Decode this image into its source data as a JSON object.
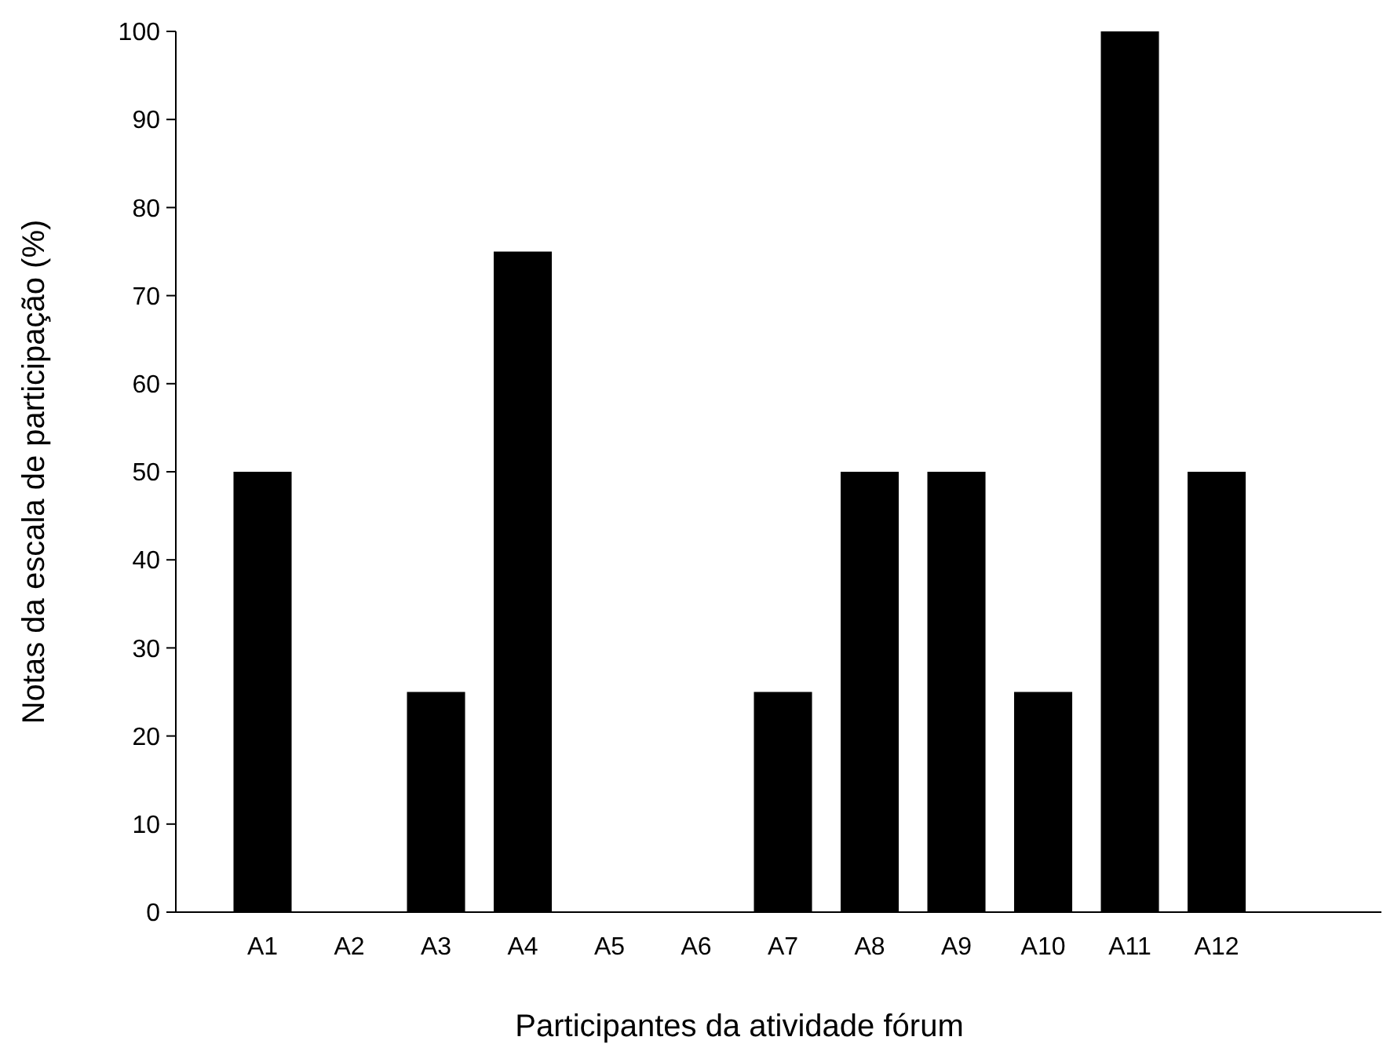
{
  "chart_data": {
    "type": "bar",
    "xlabel": "Participantes da atividade fórum",
    "ylabel": "Notas da escala de participação (%)",
    "categories": [
      "A1",
      "A2",
      "A3",
      "A4",
      "A5",
      "A6",
      "A7",
      "A8",
      "A9",
      "A10",
      "A11",
      "A12"
    ],
    "values": [
      50,
      0,
      25,
      75,
      0,
      0,
      25,
      50,
      50,
      25,
      100,
      50
    ],
    "color": "#000000",
    "ylim": [
      0,
      100
    ],
    "yticks": [
      0,
      10,
      20,
      30,
      40,
      50,
      60,
      70,
      80,
      90,
      100
    ]
  }
}
